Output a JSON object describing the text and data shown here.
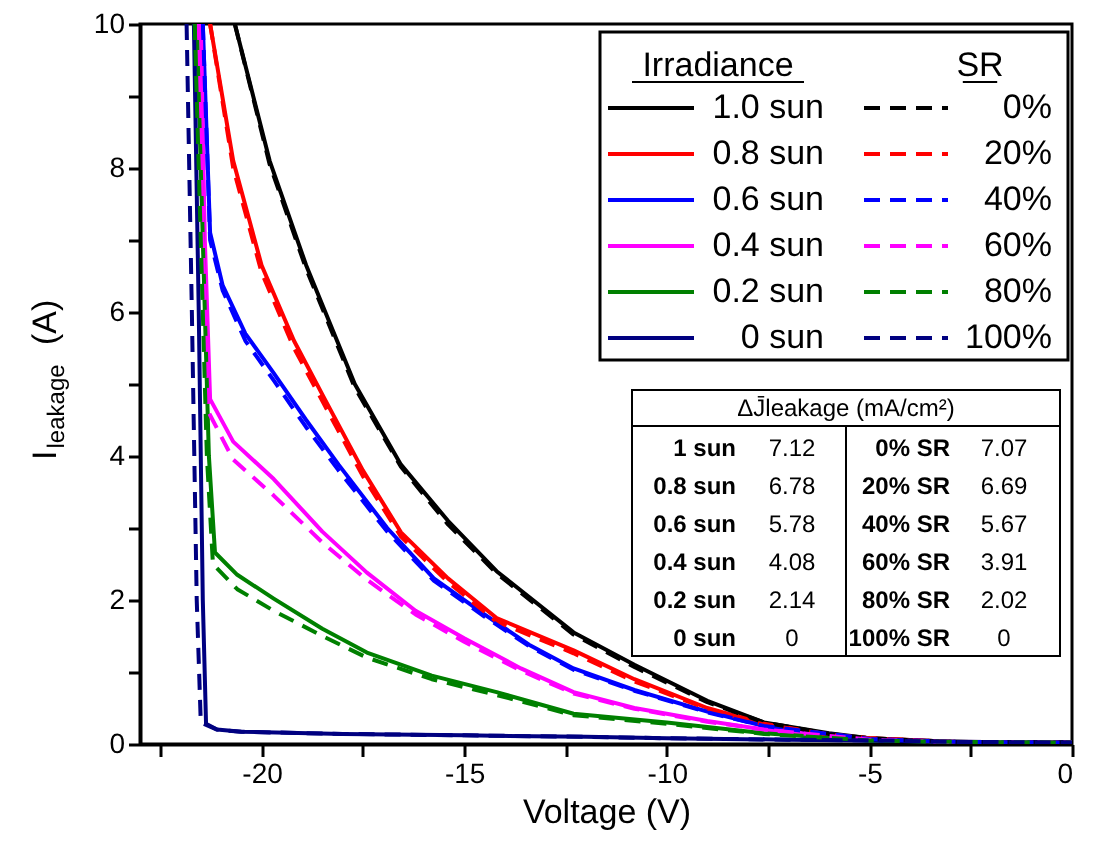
{
  "chart_data": {
    "type": "line",
    "xlabel": "Voltage (V)",
    "ylabel": "I$_{leakage}$ (A)",
    "legend_title": "Irradiance",
    "xlim": [
      -23,
      0
    ],
    "ylim": [
      0,
      10
    ],
    "xticks": [
      {
        "value": -22.5,
        "label": null
      },
      -20,
      {
        "value": -17.5,
        "label": null
      },
      -15,
      {
        "value": -12.5,
        "label": null
      },
      -10,
      {
        "value": -7.5,
        "label": null
      },
      -5,
      {
        "value": -2.5,
        "label": null
      },
      0
    ],
    "yticks": [
      0,
      {
        "value": 1,
        "label": null
      },
      2,
      {
        "value": 3,
        "label": null
      },
      4,
      {
        "value": 5,
        "label": null
      },
      6,
      {
        "value": 7,
        "label": null
      },
      8,
      {
        "value": 9,
        "label": null
      },
      10
    ],
    "grid": false,
    "legend": "top right",
    "series": [
      {
        "name": "1.0 sun",
        "color": "#000000",
        "line_style": "solid",
        "x": [
          -20.66,
          -19.8,
          -18.9,
          -17.7,
          -16.56,
          -15.4,
          -14.2,
          -12.3,
          -10.8,
          -9,
          -7.6,
          -6,
          -5,
          -3,
          0
        ],
        "values": [
          10,
          8.1,
          6.65,
          5.0,
          3.88,
          3.1,
          2.4,
          1.55,
          1.1,
          0.6,
          0.3,
          0.15,
          0.08,
          0.03,
          0.02
        ]
      },
      {
        "name": "0.8 sun",
        "color": "#ff0000",
        "line_style": "solid",
        "x": [
          -21.27,
          -20.7,
          -20.0,
          -19.2,
          -18.44,
          -17.5,
          -16.56,
          -15.4,
          -14.2,
          -12.3,
          -10.8,
          -9,
          -7.6,
          -6,
          -5,
          -3,
          0
        ],
        "values": [
          10,
          8.1,
          6.65,
          5.6,
          4.79,
          3.8,
          2.94,
          2.3,
          1.75,
          1.3,
          0.9,
          0.5,
          0.28,
          0.13,
          0.08,
          0.03,
          0.02
        ]
      },
      {
        "name": "0.6 sun",
        "color": "#0000ff",
        "line_style": "solid",
        "x": [
          -21.45,
          -21.27,
          -20.96,
          -20.4,
          -19.7,
          -18.9,
          -18.1,
          -16.9,
          -15.75,
          -14.5,
          -13.4,
          -12.3,
          -10.8,
          -9,
          -7.6,
          -5,
          -3,
          0
        ],
        "values": [
          10,
          7.1,
          6.37,
          5.7,
          5.15,
          4.5,
          3.88,
          3.0,
          2.3,
          1.8,
          1.38,
          1.05,
          0.75,
          0.45,
          0.25,
          0.07,
          0.03,
          0.02
        ]
      },
      {
        "name": "0.4 sun",
        "color": "#ff00ff",
        "line_style": "solid",
        "x": [
          -21.5,
          -21.4,
          -21.27,
          -20.7,
          -19.7,
          -18.5,
          -17.4,
          -16.2,
          -15.0,
          -13.6,
          -12.3,
          -10.8,
          -9,
          -7.6,
          -5,
          -3,
          0
        ],
        "values": [
          10,
          7.0,
          4.79,
          4.2,
          3.68,
          2.95,
          2.38,
          1.85,
          1.47,
          1.05,
          0.72,
          0.5,
          0.32,
          0.2,
          0.06,
          0.03,
          0.02
        ]
      },
      {
        "name": "0.2 sun",
        "color": "#008000",
        "line_style": "solid",
        "x": [
          -21.6,
          -21.45,
          -21.3,
          -21.15,
          -20.6,
          -19.7,
          -18.5,
          -17.4,
          -15.8,
          -14.2,
          -12.3,
          -10,
          -7.6,
          -5,
          -3,
          0
        ],
        "values": [
          10,
          7.0,
          4.0,
          2.66,
          2.35,
          2.02,
          1.6,
          1.27,
          0.95,
          0.72,
          0.42,
          0.3,
          0.15,
          0.05,
          0.03,
          0.02
        ]
      },
      {
        "name": "0 sun",
        "color": "#000080",
        "line_style": "solid",
        "x": [
          -21.67,
          -21.55,
          -21.45,
          -21.37,
          -21.1,
          -20.5,
          -18,
          -15,
          -12,
          -10,
          -7,
          -5,
          -3,
          0
        ],
        "values": [
          10,
          6.0,
          2.0,
          0.28,
          0.2,
          0.17,
          0.14,
          0.12,
          0.1,
          0.08,
          0.06,
          0.05,
          0.03,
          0.02
        ]
      },
      {
        "name": "0%",
        "color": "#000000",
        "line_style": "dashed",
        "x": [
          -20.66,
          -19.8,
          -18.9,
          -17.7,
          -16.56,
          -15.4,
          -14.2,
          -12.3,
          -10.8,
          -9,
          -7.6,
          -6,
          -5,
          -3,
          0
        ],
        "values": [
          10,
          8.05,
          6.6,
          4.95,
          3.85,
          3.05,
          2.37,
          1.52,
          1.07,
          0.58,
          0.3,
          0.14,
          0.08,
          0.03,
          0.02
        ]
      },
      {
        "name": "20%",
        "color": "#ff0000",
        "line_style": "dashed",
        "x": [
          -21.27,
          -20.7,
          -20.0,
          -19.2,
          -18.44,
          -17.5,
          -16.56,
          -15.4,
          -14.2,
          -12.3,
          -10.8,
          -9,
          -7.6,
          -6,
          -5,
          -3,
          0
        ],
        "values": [
          10,
          8.0,
          6.55,
          5.5,
          4.7,
          3.72,
          2.88,
          2.25,
          1.7,
          1.26,
          0.87,
          0.49,
          0.27,
          0.13,
          0.08,
          0.03,
          0.02
        ]
      },
      {
        "name": "40%",
        "color": "#0000ff",
        "line_style": "dashed",
        "x": [
          -21.45,
          -21.27,
          -20.96,
          -20.4,
          -19.7,
          -18.9,
          -18.1,
          -16.9,
          -15.75,
          -14.5,
          -13.4,
          -12.3,
          -10.8,
          -9,
          -7.6,
          -5,
          -3,
          0
        ],
        "values": [
          10,
          7.0,
          6.3,
          5.6,
          5.05,
          4.4,
          3.8,
          2.95,
          2.27,
          1.77,
          1.36,
          1.03,
          0.74,
          0.44,
          0.25,
          0.07,
          0.03,
          0.02
        ]
      },
      {
        "name": "60%",
        "color": "#ff00ff",
        "line_style": "dashed",
        "x": [
          -21.55,
          -21.45,
          -21.3,
          -20.7,
          -19.7,
          -18.5,
          -17.4,
          -16.2,
          -15.0,
          -13.6,
          -12.3,
          -10.8,
          -9,
          -7.6,
          -5,
          -3,
          0
        ],
        "values": [
          10,
          7.0,
          4.6,
          3.95,
          3.45,
          2.8,
          2.28,
          1.8,
          1.42,
          1.02,
          0.7,
          0.49,
          0.31,
          0.2,
          0.06,
          0.03,
          0.02
        ]
      },
      {
        "name": "80%",
        "color": "#008000",
        "line_style": "dashed",
        "x": [
          -21.65,
          -21.5,
          -21.35,
          -21.2,
          -20.6,
          -19.7,
          -18.5,
          -17.4,
          -15.8,
          -14.2,
          -12.3,
          -10,
          -7.6,
          -5,
          -3,
          0
        ],
        "values": [
          10,
          7.0,
          4.0,
          2.5,
          2.15,
          1.85,
          1.5,
          1.2,
          0.9,
          0.68,
          0.4,
          0.28,
          0.14,
          0.05,
          0.03,
          0.02
        ]
      },
      {
        "name": "100%",
        "color": "#000080",
        "line_style": "dashed",
        "x": [
          -21.85,
          -21.72,
          -21.6,
          -21.5,
          -21.1,
          -20.5,
          -18,
          -15,
          -12,
          -10,
          -7,
          -5,
          -3,
          0
        ],
        "values": [
          10,
          6.0,
          2.0,
          0.3,
          0.2,
          0.17,
          0.14,
          0.12,
          0.1,
          0.08,
          0.06,
          0.05,
          0.03,
          0.02
        ]
      }
    ],
    "annotations": [
      "SR",
      "ΔJ̄leakage (mA/cm²)",
      "1 sun",
      "7.12",
      "0% SR",
      "7.07",
      "0.8 sun",
      "6.78",
      "20% SR",
      "6.69",
      "0.6 sun",
      "5.78",
      "40% SR",
      "5.67",
      "0.4 sun",
      "4.08",
      "60% SR",
      "3.91",
      "0.2 sun",
      "2.14",
      "80% SR",
      "2.02",
      "0 sun",
      "0",
      "100% SR",
      "0"
    ]
  }
}
